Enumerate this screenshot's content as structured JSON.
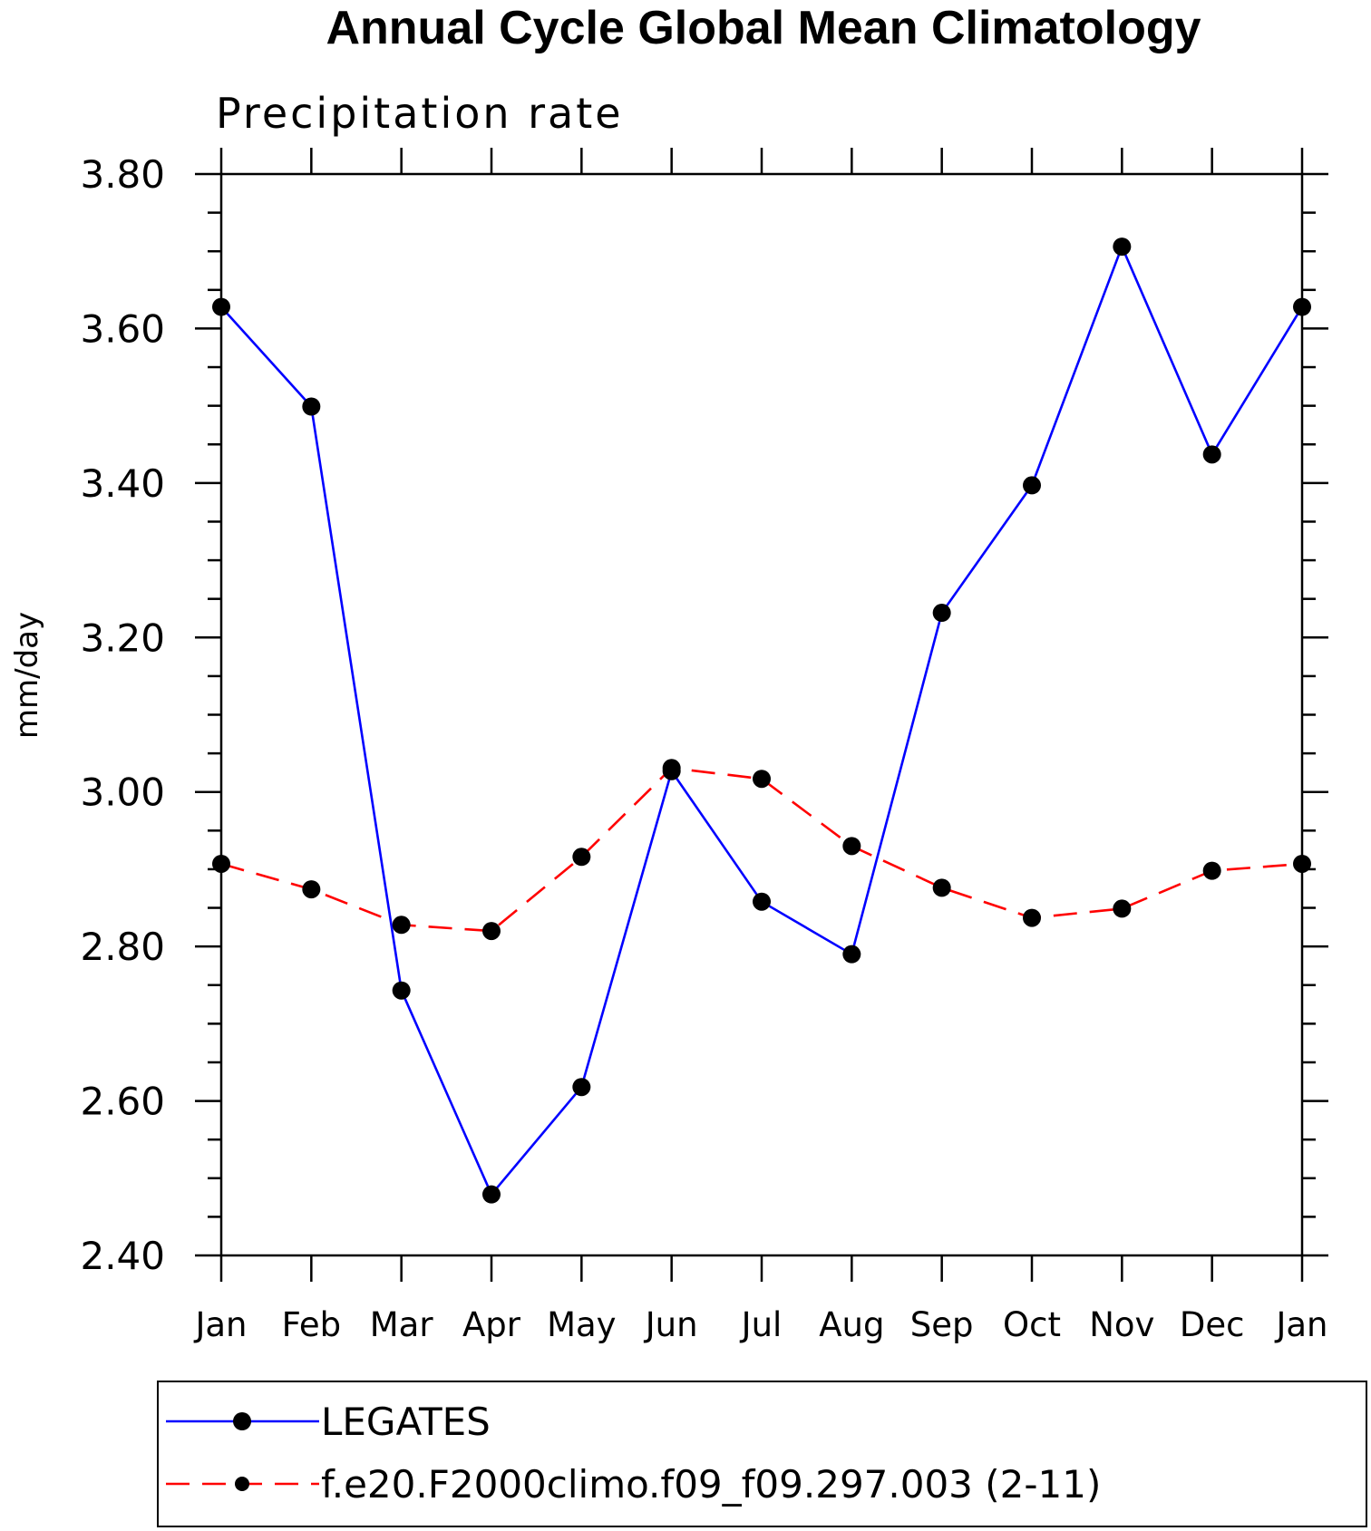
{
  "chart_data": {
    "type": "line",
    "title": "Annual Cycle Global Mean Climatology",
    "subtitle": "Precipitation rate",
    "xlabel": "",
    "ylabel": "mm/day",
    "categories": [
      "Jan",
      "Feb",
      "Mar",
      "Apr",
      "May",
      "Jun",
      "Jul",
      "Aug",
      "Sep",
      "Oct",
      "Nov",
      "Dec",
      "Jan"
    ],
    "yticks": [
      "3.80",
      "3.60",
      "3.40",
      "3.20",
      "3.00",
      "2.80",
      "2.60",
      "2.40"
    ],
    "ylim": [
      2.4,
      3.8
    ],
    "grid": false,
    "legend_position": "bottom",
    "series": [
      {
        "name": "LEGATES",
        "color": "#0000ff",
        "line_style": "solid",
        "marker": "filled-circle",
        "values": [
          3.628,
          3.499,
          2.743,
          2.479,
          2.618,
          3.027,
          2.858,
          2.79,
          3.232,
          3.397,
          3.706,
          3.437,
          3.628
        ]
      },
      {
        "name": "f.e20.F2000climo.f09_f09.297.003 (2-11)",
        "color": "#ff0000",
        "line_style": "dashed",
        "marker": "filled-circle",
        "values": [
          2.907,
          2.874,
          2.828,
          2.82,
          2.916,
          3.031,
          3.017,
          2.93,
          2.876,
          2.837,
          2.849,
          2.898,
          2.907
        ]
      }
    ]
  }
}
